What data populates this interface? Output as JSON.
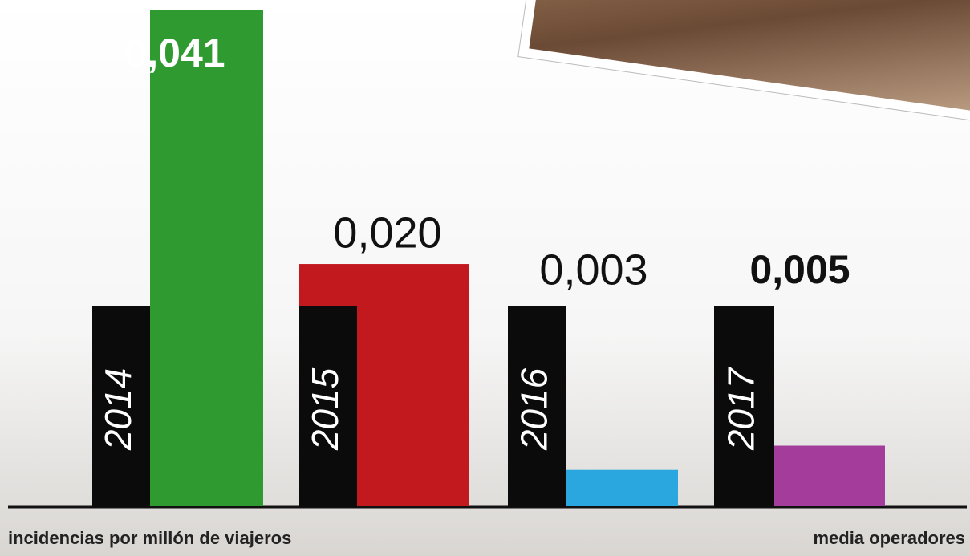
{
  "chart_data": {
    "type": "bar",
    "categories": [
      "2014",
      "2015",
      "2016",
      "2017"
    ],
    "values": [
      0.041,
      0.02,
      0.003,
      0.005
    ],
    "value_labels": [
      "0,041",
      "0,020",
      "0,003",
      "0,005"
    ],
    "colors": [
      "#2f9a2f",
      "#c2191f",
      "#2ba7e0",
      "#a43c9c"
    ],
    "ylim": [
      0,
      0.041
    ],
    "x_label": "incidencias por millón de viajeros",
    "note": "media operadores"
  }
}
